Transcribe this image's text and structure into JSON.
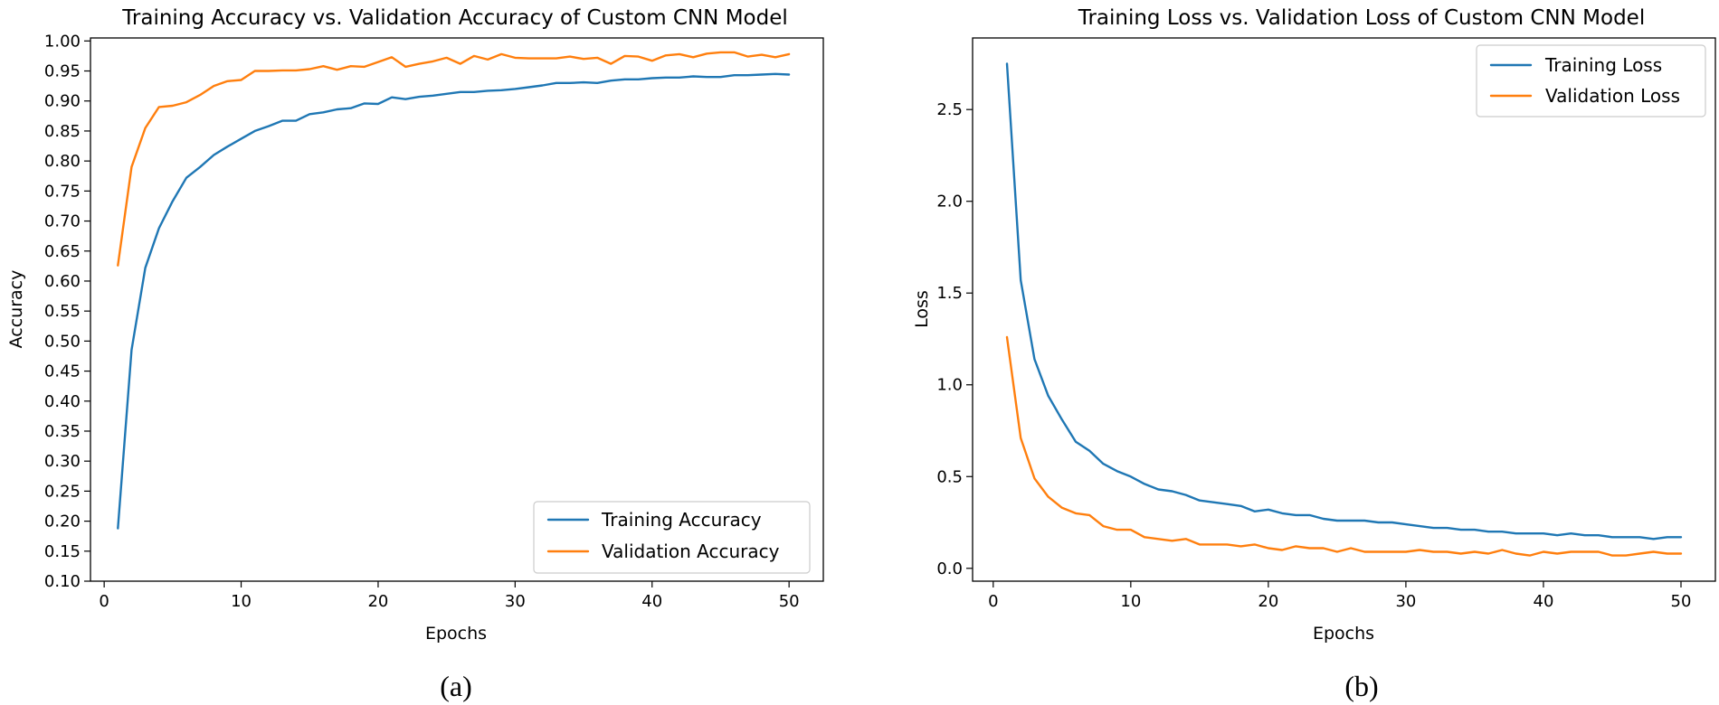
{
  "colors": {
    "training": "#1f77b4",
    "validation": "#ff7f0e"
  },
  "chart_data": [
    {
      "type": "line",
      "panel_label": "(a)",
      "title": "Training Accuracy vs. Validation Accuracy of Custom CNN Model",
      "xlabel": "Epochs",
      "ylabel": "Accuracy",
      "xlim": [
        -1,
        52.5
      ],
      "ylim": [
        0.1,
        1.005
      ],
      "xticks": [
        0,
        10,
        20,
        30,
        40,
        50
      ],
      "xtick_labels": [
        "0",
        "10",
        "20",
        "30",
        "40",
        "50"
      ],
      "yticks": [
        0.1,
        0.15,
        0.2,
        0.25,
        0.3,
        0.35,
        0.4,
        0.45,
        0.5,
        0.55,
        0.6,
        0.65,
        0.7,
        0.75,
        0.8,
        0.85,
        0.9,
        0.95,
        1.0
      ],
      "ytick_labels": [
        "0.10",
        "0.15",
        "0.20",
        "0.25",
        "0.30",
        "0.35",
        "0.40",
        "0.45",
        "0.50",
        "0.55",
        "0.60",
        "0.65",
        "0.70",
        "0.75",
        "0.80",
        "0.85",
        "0.90",
        "0.95",
        "1.00"
      ],
      "legend_position": "lower-right",
      "x": [
        1,
        2,
        3,
        4,
        5,
        6,
        7,
        8,
        9,
        10,
        11,
        12,
        13,
        14,
        15,
        16,
        17,
        18,
        19,
        20,
        21,
        22,
        23,
        24,
        25,
        26,
        27,
        28,
        29,
        30,
        31,
        32,
        33,
        34,
        35,
        36,
        37,
        38,
        39,
        40,
        41,
        42,
        43,
        44,
        45,
        46,
        47,
        48,
        49,
        50
      ],
      "series": [
        {
          "name": "Training Accuracy",
          "color_key": "training",
          "values": [
            0.188,
            0.485,
            0.622,
            0.688,
            0.733,
            0.772,
            0.79,
            0.81,
            0.824,
            0.837,
            0.85,
            0.858,
            0.867,
            0.867,
            0.878,
            0.881,
            0.886,
            0.888,
            0.896,
            0.895,
            0.906,
            0.903,
            0.907,
            0.909,
            0.912,
            0.915,
            0.915,
            0.917,
            0.918,
            0.92,
            0.923,
            0.926,
            0.93,
            0.93,
            0.931,
            0.93,
            0.934,
            0.936,
            0.936,
            0.938,
            0.939,
            0.939,
            0.941,
            0.94,
            0.94,
            0.943,
            0.943,
            0.944,
            0.945,
            0.944
          ]
        },
        {
          "name": "Validation Accuracy",
          "color_key": "validation",
          "values": [
            0.626,
            0.79,
            0.855,
            0.89,
            0.892,
            0.898,
            0.91,
            0.925,
            0.933,
            0.935,
            0.95,
            0.95,
            0.951,
            0.951,
            0.953,
            0.958,
            0.952,
            0.958,
            0.957,
            0.965,
            0.973,
            0.957,
            0.962,
            0.966,
            0.972,
            0.962,
            0.975,
            0.969,
            0.978,
            0.972,
            0.971,
            0.971,
            0.971,
            0.974,
            0.97,
            0.972,
            0.962,
            0.975,
            0.974,
            0.967,
            0.976,
            0.978,
            0.973,
            0.979,
            0.981,
            0.981,
            0.974,
            0.977,
            0.973,
            0.978
          ]
        }
      ]
    },
    {
      "type": "line",
      "panel_label": "(b)",
      "title": "Training Loss vs. Validation Loss of Custom CNN Model",
      "xlabel": "Epochs",
      "ylabel": "Loss",
      "xlim": [
        -1.5,
        52.5
      ],
      "ylim": [
        -0.07,
        2.89
      ],
      "xticks": [
        0,
        10,
        20,
        30,
        40,
        50
      ],
      "xtick_labels": [
        "0",
        "10",
        "20",
        "30",
        "40",
        "50"
      ],
      "yticks": [
        0.0,
        0.5,
        1.0,
        1.5,
        2.0,
        2.5
      ],
      "ytick_labels": [
        "0.0",
        "0.5",
        "1.0",
        "1.5",
        "2.0",
        "2.5"
      ],
      "legend_position": "top-right",
      "x": [
        1,
        2,
        3,
        4,
        5,
        6,
        7,
        8,
        9,
        10,
        11,
        12,
        13,
        14,
        15,
        16,
        17,
        18,
        19,
        20,
        21,
        22,
        23,
        24,
        25,
        26,
        27,
        28,
        29,
        30,
        31,
        32,
        33,
        34,
        35,
        36,
        37,
        38,
        39,
        40,
        41,
        42,
        43,
        44,
        45,
        46,
        47,
        48,
        49,
        50
      ],
      "series": [
        {
          "name": "Training Loss",
          "color_key": "training",
          "values": [
            2.75,
            1.57,
            1.14,
            0.94,
            0.81,
            0.69,
            0.64,
            0.57,
            0.53,
            0.5,
            0.46,
            0.43,
            0.42,
            0.4,
            0.37,
            0.36,
            0.35,
            0.34,
            0.31,
            0.32,
            0.3,
            0.29,
            0.29,
            0.27,
            0.26,
            0.26,
            0.26,
            0.25,
            0.25,
            0.24,
            0.23,
            0.22,
            0.22,
            0.21,
            0.21,
            0.2,
            0.2,
            0.19,
            0.19,
            0.19,
            0.18,
            0.19,
            0.18,
            0.18,
            0.17,
            0.17,
            0.17,
            0.16,
            0.17,
            0.17
          ]
        },
        {
          "name": "Validation Loss",
          "color_key": "validation",
          "values": [
            1.26,
            0.71,
            0.49,
            0.39,
            0.33,
            0.3,
            0.29,
            0.23,
            0.21,
            0.21,
            0.17,
            0.16,
            0.15,
            0.16,
            0.13,
            0.13,
            0.13,
            0.12,
            0.13,
            0.11,
            0.1,
            0.12,
            0.11,
            0.11,
            0.09,
            0.11,
            0.09,
            0.09,
            0.09,
            0.09,
            0.1,
            0.09,
            0.09,
            0.08,
            0.09,
            0.08,
            0.1,
            0.08,
            0.07,
            0.09,
            0.08,
            0.09,
            0.09,
            0.09,
            0.07,
            0.07,
            0.08,
            0.09,
            0.08,
            0.08
          ]
        }
      ]
    }
  ]
}
